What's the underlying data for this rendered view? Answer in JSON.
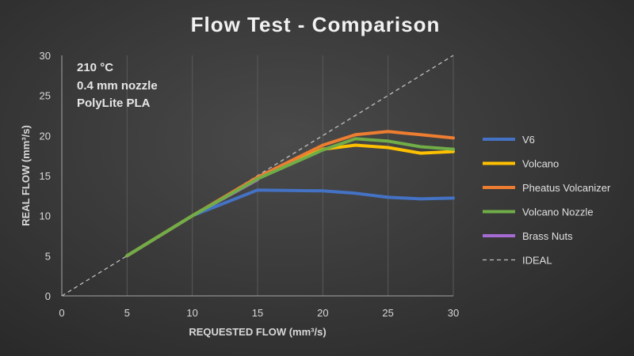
{
  "chart_data": {
    "type": "line",
    "title": "Flow Test - Comparison",
    "xlabel": "REQUESTED FLOW (mm³/s)",
    "ylabel": "REAL FLOW (mm³/s)",
    "xlim": [
      0,
      30
    ],
    "ylim": [
      0,
      30
    ],
    "xticks": [
      0,
      5,
      10,
      15,
      20,
      25,
      30
    ],
    "yticks": [
      0,
      5,
      10,
      15,
      20,
      25,
      30
    ],
    "grid": "vertical",
    "legend_position": "right",
    "annotations": [
      "210 °C",
      "0.4 mm nozzle",
      "PolyLite PLA"
    ],
    "series": [
      {
        "name": "V6",
        "color": "#4472C4",
        "x": [
          5,
          10,
          15,
          20,
          22.5,
          25,
          27.5,
          30
        ],
        "y": [
          5,
          10,
          13.2,
          13.1,
          12.8,
          12.3,
          12.1,
          12.2
        ]
      },
      {
        "name": "Volcano",
        "color": "#FFC000",
        "x": [
          5,
          10,
          15,
          20,
          22.5,
          25,
          27.5,
          30
        ],
        "y": [
          5,
          10,
          14.7,
          18.3,
          18.8,
          18.5,
          17.8,
          18.0
        ]
      },
      {
        "name": "Pheatus Volcanizer",
        "color": "#ED7D31",
        "x": [
          5,
          10,
          15,
          20,
          22.5,
          25,
          27.5,
          30
        ],
        "y": [
          5,
          10,
          14.8,
          18.8,
          20.1,
          20.5,
          20.1,
          19.7
        ]
      },
      {
        "name": "Volcano Nozzle",
        "color": "#70AD47",
        "x": [
          5,
          10,
          15,
          20,
          22.5,
          25,
          27.5,
          30
        ],
        "y": [
          5,
          10,
          14.6,
          18.2,
          19.6,
          19.3,
          18.6,
          18.3
        ]
      },
      {
        "name": "Brass Nuts",
        "color": "#A66BD3",
        "x": [
          5,
          10,
          15
        ],
        "y": [
          5,
          10,
          14.5
        ]
      },
      {
        "name": "IDEAL",
        "color": "#BFBFBF",
        "dashed": true,
        "x": [
          0,
          30
        ],
        "y": [
          0,
          30
        ]
      }
    ],
    "draw_order": [
      "Brass Nuts",
      "IDEAL",
      "V6",
      "Volcano",
      "Pheatus Volcanizer",
      "Volcano Nozzle"
    ]
  }
}
